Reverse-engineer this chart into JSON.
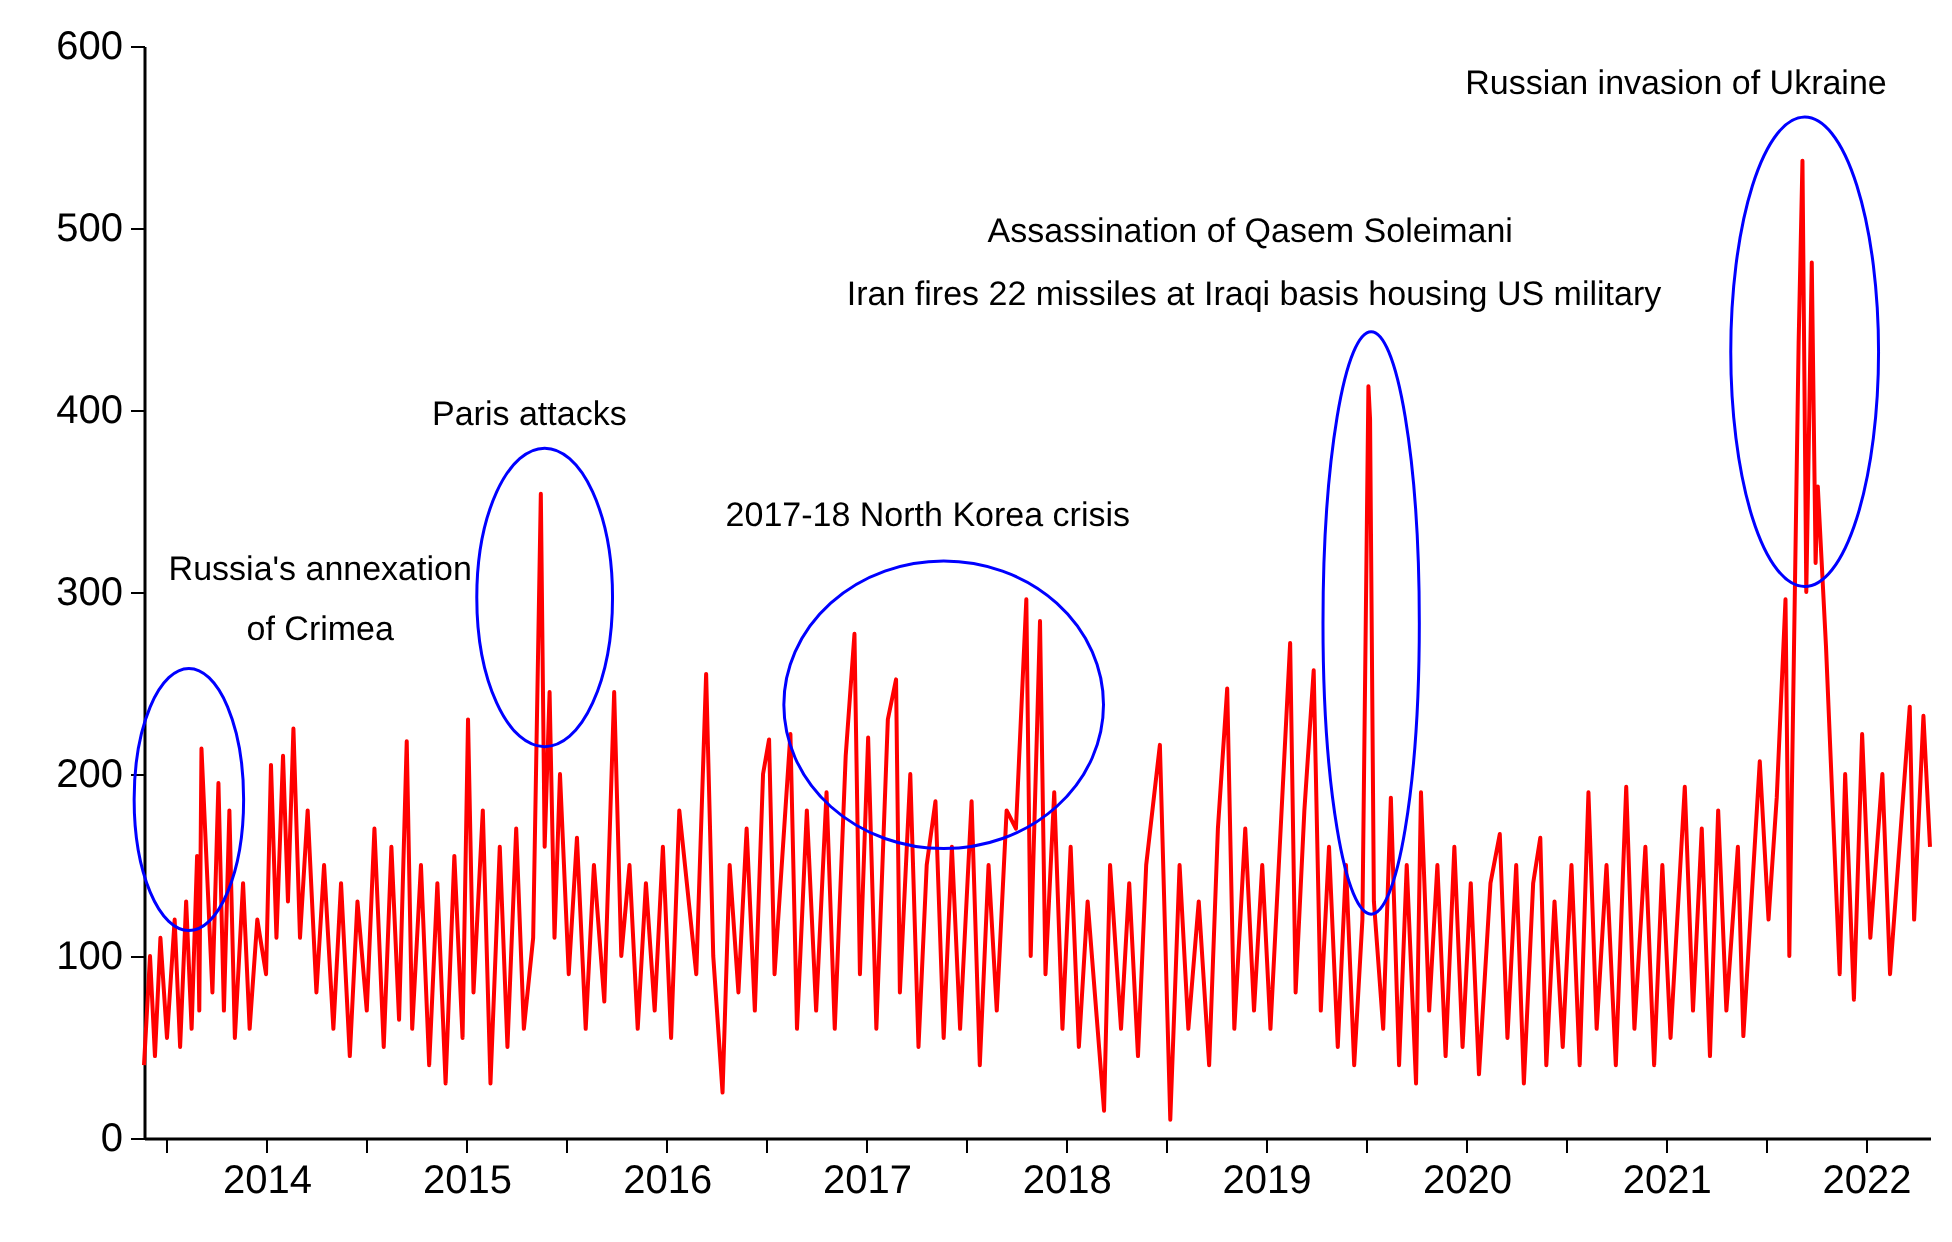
{
  "chart_data": {
    "type": "line",
    "x": [
      "2013-11-20",
      "2013-12-01",
      "2013-12-10",
      "2013-12-20",
      "2014-01-01",
      "2014-01-15",
      "2014-01-25",
      "2014-02-05",
      "2014-02-15",
      "2014-02-25",
      "2014-03-01",
      "2014-03-05",
      "2014-03-25",
      "2014-04-05",
      "2014-04-15",
      "2014-04-25",
      "2014-05-05",
      "2014-05-20",
      "2014-06-01",
      "2014-06-15",
      "2014-07-01",
      "2014-07-10",
      "2014-07-20",
      "2014-08-01",
      "2014-08-10",
      "2014-08-20",
      "2014-09-01",
      "2014-09-15",
      "2014-10-01",
      "2014-10-15",
      "2014-11-01",
      "2014-11-15",
      "2014-12-01",
      "2014-12-15",
      "2015-01-01",
      "2015-01-15",
      "2015-02-01",
      "2015-02-15",
      "2015-03-01",
      "2015-03-15",
      "2015-03-25",
      "2015-04-10",
      "2015-04-25",
      "2015-05-10",
      "2015-05-25",
      "2015-06-10",
      "2015-06-25",
      "2015-07-05",
      "2015-07-15",
      "2015-08-01",
      "2015-08-15",
      "2015-09-01",
      "2015-09-15",
      "2015-10-01",
      "2015-10-15",
      "2015-11-01",
      "2015-11-15",
      "2015-11-22",
      "2015-12-01",
      "2015-12-10",
      "2015-12-20",
      "2016-01-05",
      "2016-01-20",
      "2016-02-05",
      "2016-02-20",
      "2016-03-10",
      "2016-03-28",
      "2016-04-10",
      "2016-04-25",
      "2016-05-10",
      "2016-05-25",
      "2016-06-10",
      "2016-06-25",
      "2016-07-10",
      "2016-07-25",
      "2016-08-25",
      "2016-09-12",
      "2016-09-25",
      "2016-10-12",
      "2016-10-25",
      "2016-11-10",
      "2016-11-25",
      "2016-12-10",
      "2016-12-25",
      "2017-01-05",
      "2017-01-15",
      "2017-02-13",
      "2017-02-25",
      "2017-03-15",
      "2017-04-01",
      "2017-04-20",
      "2017-05-05",
      "2017-05-25",
      "2017-06-10",
      "2017-06-20",
      "2017-07-05",
      "2017-07-20",
      "2017-08-10",
      "2017-08-25",
      "2017-09-01",
      "2017-09-20",
      "2017-10-05",
      "2017-10-20",
      "2017-11-05",
      "2017-11-20",
      "2017-12-05",
      "2017-12-20",
      "2018-01-10",
      "2018-01-25",
      "2018-02-10",
      "2018-02-25",
      "2018-03-15",
      "2018-04-01",
      "2018-04-20",
      "2018-04-28",
      "2018-05-15",
      "2018-05-25",
      "2018-06-10",
      "2018-06-25",
      "2018-07-10",
      "2018-07-25",
      "2018-08-10",
      "2018-09-09",
      "2018-09-20",
      "2018-10-10",
      "2018-10-25",
      "2018-11-10",
      "2018-11-25",
      "2018-12-20",
      "2019-01-08",
      "2019-01-25",
      "2019-02-10",
      "2019-03-01",
      "2019-03-20",
      "2019-04-05",
      "2019-04-22",
      "2019-05-05",
      "2019-05-25",
      "2019-06-10",
      "2019-06-25",
      "2019-07-10",
      "2019-08-15",
      "2019-08-25",
      "2019-09-10",
      "2019-09-27",
      "2019-10-10",
      "2019-10-25",
      "2019-11-10",
      "2019-11-25",
      "2019-12-10",
      "2019-12-25",
      "2020-01-05",
      "2020-01-08",
      "2020-01-15",
      "2020-02-01",
      "2020-02-15",
      "2020-03-01",
      "2020-03-15",
      "2020-04-01",
      "2020-04-10",
      "2020-04-25",
      "2020-05-10",
      "2020-05-25",
      "2020-06-10",
      "2020-06-25",
      "2020-07-10",
      "2020-07-25",
      "2020-08-15",
      "2020-09-01",
      "2020-09-15",
      "2020-10-01",
      "2020-10-15",
      "2020-11-01",
      "2020-11-14",
      "2020-11-25",
      "2020-12-10",
      "2020-12-25",
      "2021-01-10",
      "2021-01-25",
      "2021-02-10",
      "2021-02-25",
      "2021-03-15",
      "2021-04-01",
      "2021-04-20",
      "2021-05-05",
      "2021-05-25",
      "2021-06-10",
      "2021-06-25",
      "2021-07-10",
      "2021-08-05",
      "2021-08-20",
      "2021-09-05",
      "2021-09-20",
      "2021-10-05",
      "2021-10-20",
      "2021-11-10",
      "2021-11-20",
      "2021-12-20",
      "2022-01-05",
      "2022-01-20",
      "2022-02-05",
      "2022-02-12",
      "2022-03-01",
      "2022-03-08",
      "2022-03-15",
      "2022-03-25",
      "2022-04-01",
      "2022-04-05",
      "2022-04-20",
      "2022-05-15",
      "2022-05-25",
      "2022-06-10",
      "2022-06-25",
      "2022-07-10",
      "2022-08-01",
      "2022-08-15",
      "2022-09-20",
      "2022-09-28",
      "2022-10-15",
      "2022-10-27"
    ],
    "series": [
      {
        "color": "#ff0000",
        "values": [
          40,
          100,
          45,
          110,
          55,
          120,
          50,
          130,
          60,
          155,
          70,
          214,
          80,
          195,
          70,
          180,
          55,
          140,
          60,
          120,
          90,
          205,
          110,
          210,
          130,
          225,
          110,
          180,
          80,
          150,
          60,
          140,
          45,
          130,
          70,
          170,
          50,
          160,
          65,
          218,
          60,
          150,
          40,
          140,
          30,
          155,
          55,
          230,
          80,
          180,
          30,
          160,
          50,
          170,
          60,
          110,
          354,
          160,
          245,
          110,
          200,
          90,
          165,
          60,
          150,
          75,
          245,
          100,
          150,
          60,
          140,
          70,
          160,
          55,
          180,
          90,
          255,
          100,
          25,
          150,
          80,
          170,
          70,
          200,
          219,
          90,
          222,
          60,
          180,
          70,
          190,
          60,
          210,
          277,
          90,
          220,
          60,
          230,
          252,
          80,
          200,
          50,
          150,
          185,
          55,
          160,
          60,
          185,
          40,
          150,
          70,
          180,
          170,
          296,
          100,
          284,
          90,
          190,
          60,
          160,
          50,
          130,
          15,
          150,
          60,
          140,
          45,
          150,
          216,
          10,
          150,
          60,
          130,
          40,
          170,
          247,
          60,
          170,
          70,
          150,
          60,
          272,
          80,
          180,
          257,
          70,
          160,
          50,
          150,
          40,
          120,
          413,
          395,
          130,
          60,
          187,
          40,
          150,
          30,
          190,
          70,
          150,
          45,
          160,
          50,
          140,
          35,
          140,
          167,
          55,
          150,
          30,
          140,
          165,
          40,
          130,
          50,
          150,
          40,
          190,
          60,
          150,
          40,
          193,
          60,
          160,
          40,
          150,
          55,
          193,
          70,
          170,
          45,
          180,
          70,
          160,
          56,
          207,
          120,
          187,
          296,
          100,
          437,
          537,
          300,
          481,
          316,
          358,
          270,
          90,
          200,
          76,
          222,
          110,
          200,
          90,
          237,
          120,
          232,
          160
        ]
      }
    ],
    "xlim": [
      "2013-11-20",
      "2022-10-27"
    ],
    "xticks": [
      {
        "value": "2014-01-01",
        "label": null
      },
      {
        "value": "2014-07-02",
        "label": "2014"
      },
      {
        "value": "2015-01-01",
        "label": null
      },
      {
        "value": "2015-07-02",
        "label": "2015"
      },
      {
        "value": "2016-01-01",
        "label": null
      },
      {
        "value": "2016-07-02",
        "label": "2016"
      },
      {
        "value": "2017-01-01",
        "label": null
      },
      {
        "value": "2017-07-02",
        "label": "2017"
      },
      {
        "value": "2018-01-01",
        "label": null
      },
      {
        "value": "2018-07-02",
        "label": "2018"
      },
      {
        "value": "2019-01-01",
        "label": null
      },
      {
        "value": "2019-07-02",
        "label": "2019"
      },
      {
        "value": "2020-01-01",
        "label": null
      },
      {
        "value": "2020-07-02",
        "label": "2020"
      },
      {
        "value": "2021-01-01",
        "label": null
      },
      {
        "value": "2021-07-02",
        "label": "2021"
      },
      {
        "value": "2022-01-01",
        "label": null
      },
      {
        "value": "2022-07-02",
        "label": "2022"
      }
    ],
    "ylim": [
      0,
      600
    ],
    "yticks": [
      0,
      100,
      200,
      300,
      400,
      500,
      600
    ],
    "marker": "none",
    "line_style": "solid",
    "annotations": [
      "Russia's annexation\nof Crimea",
      "Paris attacks",
      "2017-18 North Korea crisis",
      "Assassination of Qasem Soleimani",
      "Iran fires 22 missiles at Iraqi basis housing US military",
      "Russian invasion of Ukraine"
    ]
  }
}
